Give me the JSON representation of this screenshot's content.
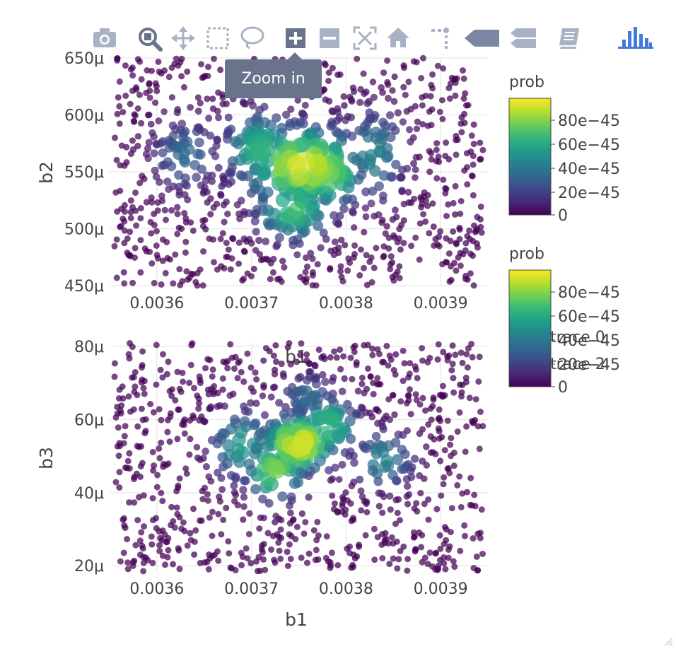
{
  "modebar": {
    "buttons": [
      {
        "name": "camera-icon"
      },
      {
        "name": "zoom-icon"
      },
      {
        "name": "pan-icon"
      },
      {
        "name": "box-select-icon"
      },
      {
        "name": "lasso-select-icon"
      },
      {
        "name": "zoom-in-icon",
        "active": true
      },
      {
        "name": "zoom-out-icon"
      },
      {
        "name": "autoscale-icon"
      },
      {
        "name": "reset-axes-icon"
      },
      {
        "name": "toggle-spike-lines-icon"
      },
      {
        "name": "hover-closest-icon"
      },
      {
        "name": "hover-compare-icon"
      },
      {
        "name": "edit-in-chart-studio-icon"
      },
      {
        "name": "plotly-logo-icon"
      }
    ],
    "colors": {
      "icon": "#a9b2c4",
      "active_bg": "#69738a",
      "logo": "#447adb"
    }
  },
  "tooltip": {
    "text": "Zoom in"
  },
  "chart_data": [
    {
      "type": "scatter",
      "xlabel": "b1",
      "ylabel": "b2",
      "xlim": [
        0.00355,
        0.00395
      ],
      "ylim": [
        0.00045,
        0.00065
      ],
      "xticks": [
        {
          "value": 0.0036,
          "label": "0.0036"
        },
        {
          "value": 0.0037,
          "label": "0.0037"
        },
        {
          "value": 0.0038,
          "label": "0.0038"
        },
        {
          "value": 0.0039,
          "label": "0.0039"
        }
      ],
      "yticks": [
        {
          "value": 0.00045,
          "label": "450μ"
        },
        {
          "value": 0.0005,
          "label": "500μ"
        },
        {
          "value": 0.00055,
          "label": "550μ"
        },
        {
          "value": 0.0006,
          "label": "600μ"
        },
        {
          "value": 0.00065,
          "label": "650μ"
        }
      ],
      "color_by": "prob",
      "size_by": "prob",
      "background_points": 900,
      "seed": 7,
      "hotspots": [
        {
          "x": 0.003755,
          "y": 0.000555,
          "sx": 4e-05,
          "sy": 2.2e-05,
          "peak": 0.95
        },
        {
          "x": 0.00378,
          "y": 0.00055,
          "sx": 2.5e-05,
          "sy": 2e-05,
          "peak": 0.8
        },
        {
          "x": 0.00371,
          "y": 0.00057,
          "sx": 2.5e-05,
          "sy": 2e-05,
          "peak": 0.65
        },
        {
          "x": 0.003745,
          "y": 0.000518,
          "sx": 2.5e-05,
          "sy": 1.8e-05,
          "peak": 0.7
        },
        {
          "x": 0.00363,
          "y": 0.000565,
          "sx": 2.2e-05,
          "sy": 2e-05,
          "peak": 0.35
        },
        {
          "x": 0.00383,
          "y": 0.000565,
          "sx": 2e-05,
          "sy": 2.5e-05,
          "peak": 0.45
        }
      ]
    },
    {
      "type": "scatter",
      "xlabel": "b1",
      "ylabel": "b3",
      "xlim": [
        0.00355,
        0.00395
      ],
      "ylim": [
        1.85e-05,
        8.1e-05
      ],
      "xticks": [
        {
          "value": 0.0036,
          "label": "0.0036"
        },
        {
          "value": 0.0037,
          "label": "0.0037"
        },
        {
          "value": 0.0038,
          "label": "0.0038"
        },
        {
          "value": 0.0039,
          "label": "0.0039"
        }
      ],
      "yticks": [
        {
          "value": 2e-05,
          "label": "20μ"
        },
        {
          "value": 4e-05,
          "label": "40μ"
        },
        {
          "value": 6e-05,
          "label": "60μ"
        },
        {
          "value": 8e-05,
          "label": "80μ"
        }
      ],
      "color_by": "prob",
      "size_by": "prob",
      "background_points": 900,
      "seed": 23,
      "hotspots": [
        {
          "x": 0.00375,
          "y": 5.35e-05,
          "sx": 2.5e-05,
          "sy": 5e-06,
          "peak": 0.95
        },
        {
          "x": 0.003725,
          "y": 4.6e-05,
          "sx": 2e-05,
          "sy": 5e-06,
          "peak": 0.8
        },
        {
          "x": 0.00378,
          "y": 5.8e-05,
          "sx": 2e-05,
          "sy": 5e-06,
          "peak": 0.7
        },
        {
          "x": 0.00369,
          "y": 5.3e-05,
          "sx": 2e-05,
          "sy": 6e-06,
          "peak": 0.55
        },
        {
          "x": 0.00384,
          "y": 4.9e-05,
          "sx": 2e-05,
          "sy": 5e-06,
          "peak": 0.45
        },
        {
          "x": 0.00376,
          "y": 6.6e-05,
          "sx": 2e-05,
          "sy": 4e-06,
          "peak": 0.35
        }
      ]
    }
  ],
  "colorbars": [
    {
      "title": "prob",
      "ticks": [
        "80e−45",
        "60e−45",
        "40e−45",
        "20e−45",
        "0"
      ]
    },
    {
      "title": "prob",
      "ticks": [
        "80e−45",
        "60e−45",
        "40e−45",
        "20e−45",
        "0"
      ]
    }
  ],
  "legend": {
    "items": [
      "trace 0",
      "trace 2"
    ]
  },
  "colorscale": [
    "#440154",
    "#482878",
    "#3e4989",
    "#31688e",
    "#26828e",
    "#1f9e89",
    "#35b779",
    "#6ece58",
    "#b5de2b",
    "#fde725"
  ]
}
